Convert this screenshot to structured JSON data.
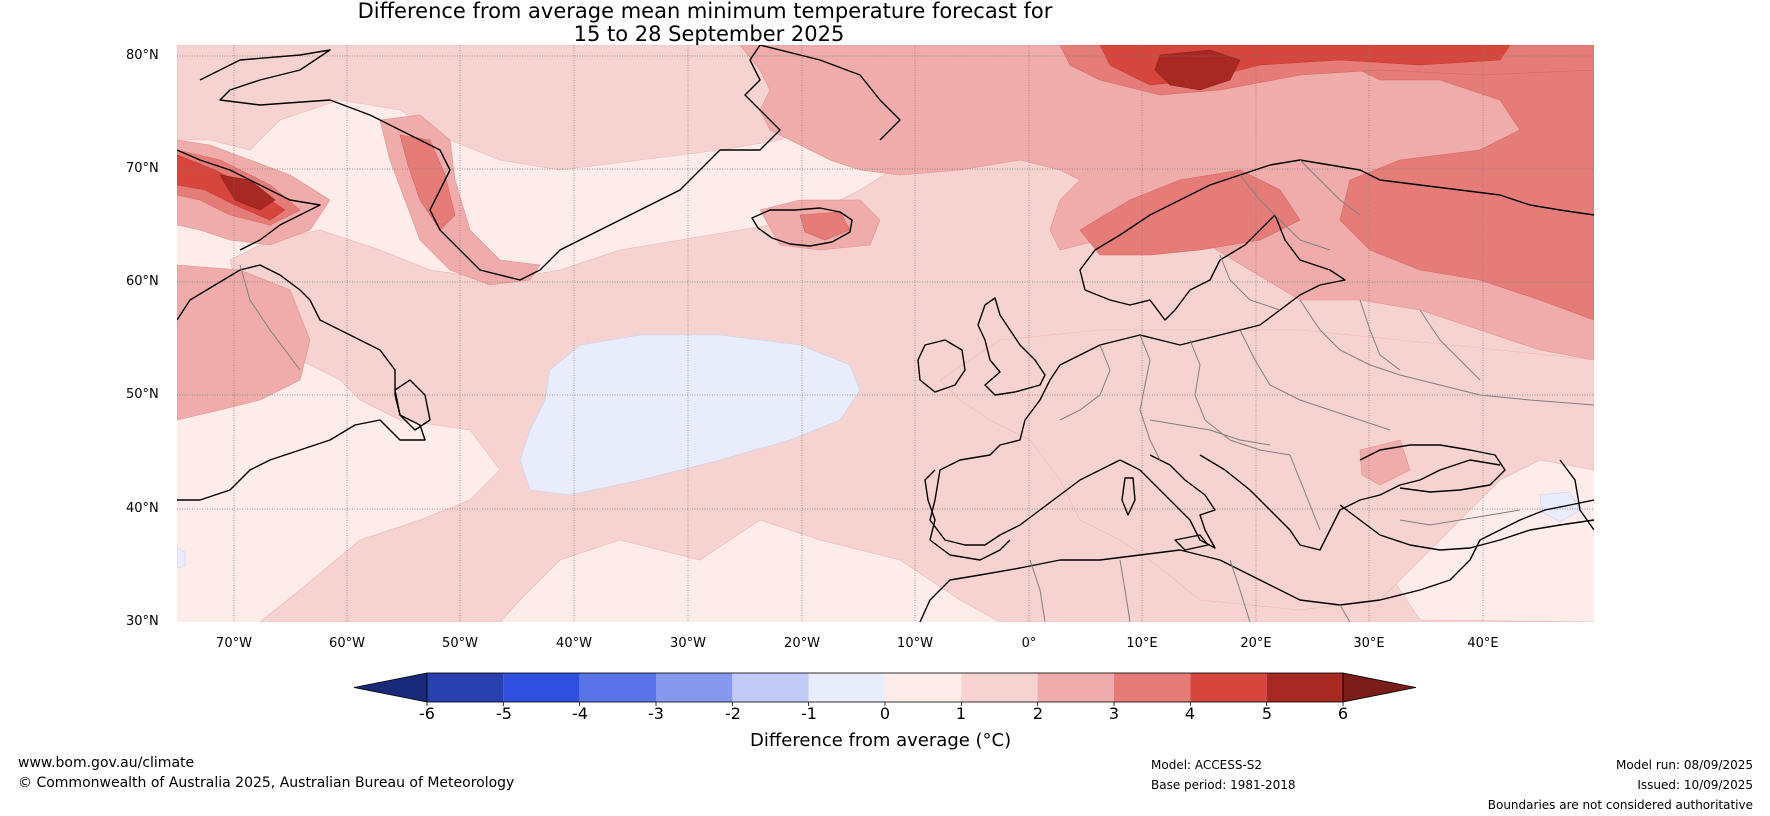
{
  "title": {
    "line1": "Difference from average mean minimum temperature forecast for",
    "line2": "15 to 28 September 2025"
  },
  "map": {
    "lat_labels": [
      "80°N",
      "70°N",
      "60°N",
      "50°N",
      "40°N",
      "30°N"
    ],
    "lon_labels": [
      "70°W",
      "60°W",
      "50°W",
      "40°W",
      "30°W",
      "20°W",
      "10°W",
      "0°",
      "10°E",
      "20°E",
      "30°E",
      "40°E"
    ],
    "extent": {
      "lon": [
        -75,
        50
      ],
      "lat": [
        30,
        81
      ]
    }
  },
  "legend": {
    "ticks": [
      "-6",
      "-5",
      "-4",
      "-3",
      "-2",
      "-1",
      "0",
      "1",
      "2",
      "3",
      "4",
      "5",
      "6"
    ],
    "label": "Difference from average (°C)",
    "colors": [
      "#1a2a7a",
      "#2940b0",
      "#2f4fde",
      "#5a73e8",
      "#8699ee",
      "#c0caf5",
      "#e8ecfb",
      "#fdecea",
      "#f6d3d1",
      "#efacab",
      "#e67c78",
      "#d6463d",
      "#a82824",
      "#7a1c1a"
    ]
  },
  "footer": {
    "website": "www.bom.gov.au/climate",
    "copyright": "© Commonwealth of Australia 2025, Australian Bureau of Meteorology",
    "model": "Model: ACCESS-S2",
    "base_period": "Base period: 1981-2018",
    "model_run": "Model run: 08/09/2025",
    "issued": "Issued: 10/09/2025",
    "disclaimer": "Boundaries are not considered authoritative"
  }
}
